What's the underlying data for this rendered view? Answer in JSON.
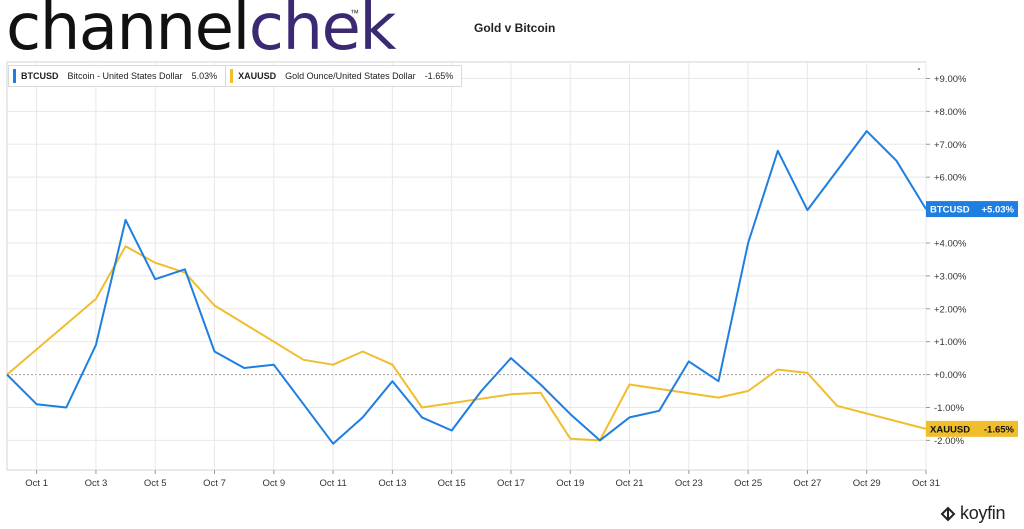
{
  "brand": {
    "part1": "channel",
    "part2": "chek",
    "tm": "™"
  },
  "chart_title": "Gold v Bitcoin",
  "koyfin": {
    "label": "koyfin"
  },
  "colors": {
    "btc": "#1e7fe0",
    "gold": "#f0be2d",
    "grid": "#e8e8e8",
    "zero": "#9a9a9a"
  },
  "chart_data": {
    "type": "line",
    "title": "Gold v Bitcoin",
    "xlabel": "",
    "ylabel": "",
    "x_ticks": [
      "Oct 1",
      "Oct 3",
      "Oct 5",
      "Oct 7",
      "Oct 9",
      "Oct 11",
      "Oct 13",
      "Oct 15",
      "Oct 17",
      "Oct 19",
      "Oct 21",
      "Oct 23",
      "Oct 25",
      "Oct 27",
      "Oct 29",
      "Oct 31"
    ],
    "y_ticks": [
      "+9.00%",
      "+8.00%",
      "+7.00%",
      "+6.00%",
      "+5.00%",
      "+4.00%",
      "+3.00%",
      "+2.00%",
      "+1.00%",
      "+0.00%",
      "-1.00%",
      "-2.00%"
    ],
    "ylim": [
      -2.9,
      9.5
    ],
    "grid": true,
    "legend_position": "top-left",
    "series": [
      {
        "symbol": "BTCUSD",
        "name": "Bitcoin - United States Dollar",
        "legend_value": "5.03%",
        "end_label": "+5.03%",
        "color": "#1e7fe0",
        "points": [
          [
            0,
            0.0
          ],
          [
            1,
            -0.9
          ],
          [
            2,
            -1.0
          ],
          [
            3,
            0.9
          ],
          [
            4,
            4.7
          ],
          [
            5,
            2.9
          ],
          [
            6,
            3.2
          ],
          [
            7,
            0.7
          ],
          [
            8,
            0.2
          ],
          [
            9,
            0.3
          ],
          [
            10,
            -0.9
          ],
          [
            11,
            -2.1
          ],
          [
            12,
            -1.3
          ],
          [
            13,
            -0.2
          ],
          [
            14,
            -1.3
          ],
          [
            15,
            -1.7
          ],
          [
            16,
            -0.5
          ],
          [
            17,
            0.5
          ],
          [
            18,
            -0.3
          ],
          [
            19,
            -1.2
          ],
          [
            20,
            -2.0
          ],
          [
            21,
            -1.3
          ],
          [
            22,
            -1.1
          ],
          [
            23,
            0.4
          ],
          [
            24,
            -0.2
          ],
          [
            25,
            4.0
          ],
          [
            26,
            6.8
          ],
          [
            27,
            5.0
          ],
          [
            28,
            6.2
          ],
          [
            29,
            7.4
          ],
          [
            30,
            6.5
          ],
          [
            31,
            5.03
          ]
        ]
      },
      {
        "symbol": "XAUUSD",
        "name": "Gold Ounce/United States Dollar",
        "legend_value": "-1.65%",
        "end_label": "-1.65%",
        "color": "#f0be2d",
        "points": [
          [
            0,
            0.0
          ],
          [
            3,
            2.3
          ],
          [
            4,
            3.9
          ],
          [
            5,
            3.4
          ],
          [
            6,
            3.1
          ],
          [
            7,
            2.1
          ],
          [
            10,
            0.45
          ],
          [
            11,
            0.3
          ],
          [
            12,
            0.7
          ],
          [
            13,
            0.3
          ],
          [
            14,
            -1.0
          ],
          [
            17,
            -0.6
          ],
          [
            18,
            -0.55
          ],
          [
            19,
            -1.95
          ],
          [
            20,
            -2.0
          ],
          [
            21,
            -0.3
          ],
          [
            24,
            -0.7
          ],
          [
            25,
            -0.5
          ],
          [
            26,
            0.15
          ],
          [
            27,
            0.05
          ],
          [
            28,
            -0.95
          ],
          [
            31,
            -1.65
          ]
        ]
      }
    ]
  }
}
